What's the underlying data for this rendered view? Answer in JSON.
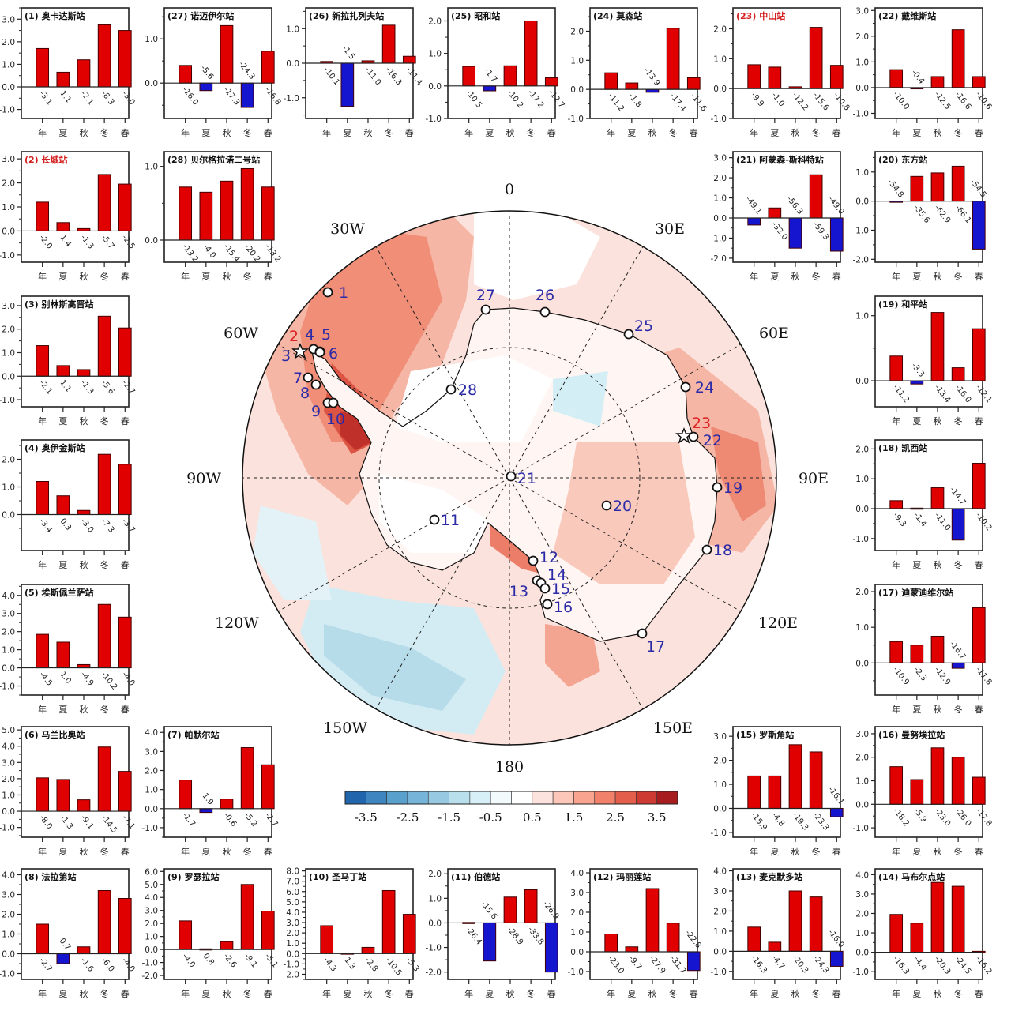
{
  "chart_data": [
    {
      "type": "bar",
      "id": "1",
      "title": "(1) 奥卡达斯站",
      "title_color": "#111111",
      "ylim": [
        -1.4,
        3.5
      ],
      "yticks": [
        -1,
        0,
        1,
        2,
        3
      ],
      "categories": [
        "年",
        "夏",
        "秋",
        "冬",
        "春"
      ],
      "values": [
        1.7,
        0.65,
        1.2,
        2.75,
        2.5
      ],
      "bar_labels": [
        "-3.1",
        "1.1",
        "-2.1",
        "-8.3",
        "-3.0"
      ]
    },
    {
      "type": "bar",
      "id": "27",
      "title": "(27) 诺迈伊尔站",
      "title_color": "#111111",
      "ylim": [
        -0.8,
        1.7
      ],
      "yticks": [
        0,
        1
      ],
      "categories": [
        "年",
        "夏",
        "秋",
        "冬",
        "春"
      ],
      "values": [
        0.4,
        -0.17,
        1.3,
        -0.55,
        0.72
      ],
      "bar_labels": [
        "-16.0",
        "-5.6",
        "-17.3",
        "-24.3",
        "-16.8"
      ]
    },
    {
      "type": "bar",
      "id": "26",
      "title": "(26) 新拉扎列夫站",
      "title_color": "#111111",
      "ylim": [
        -1.6,
        1.6
      ],
      "yticks": [
        -1,
        0,
        1
      ],
      "categories": [
        "年",
        "夏",
        "秋",
        "冬",
        "春"
      ],
      "values": [
        0.05,
        -1.25,
        0.07,
        1.1,
        0.2
      ],
      "bar_labels": [
        "-10.1",
        "-1.5",
        "-11.0",
        "-16.3",
        "-11.4"
      ]
    },
    {
      "type": "bar",
      "id": "25",
      "title": "(25) 昭和站",
      "title_color": "#111111",
      "ylim": [
        -1.0,
        2.4
      ],
      "yticks": [
        -1,
        0,
        1,
        2
      ],
      "categories": [
        "年",
        "夏",
        "秋",
        "冬",
        "春"
      ],
      "values": [
        0.6,
        -0.15,
        0.62,
        2.0,
        0.25
      ],
      "bar_labels": [
        "-10.5",
        "-1.7",
        "-10.2",
        "-17.2",
        "-12.7"
      ]
    },
    {
      "type": "bar",
      "id": "24",
      "title": "(24) 莫森站",
      "title_color": "#111111",
      "ylim": [
        -1.0,
        2.8
      ],
      "yticks": [
        -1,
        0,
        1,
        2
      ],
      "categories": [
        "年",
        "夏",
        "秋",
        "冬",
        "春"
      ],
      "values": [
        0.57,
        0.22,
        -0.1,
        2.1,
        0.4
      ],
      "bar_labels": [
        "-11.2",
        "-1.8",
        "-13.9",
        "-17.4",
        "-11.6"
      ]
    },
    {
      "type": "bar",
      "id": "23",
      "title": "(23) 中山站",
      "title_color": "#d42020",
      "ylim": [
        -1.0,
        2.7
      ],
      "yticks": [
        -1,
        0,
        1,
        2
      ],
      "categories": [
        "年",
        "夏",
        "秋",
        "冬",
        "春"
      ],
      "values": [
        0.8,
        0.72,
        0.06,
        2.05,
        0.78
      ],
      "bar_labels": [
        "-9.9",
        "-1.0",
        "-12.2",
        "-15.6",
        "-10.8"
      ]
    },
    {
      "type": "bar",
      "id": "22",
      "title": "(22) 戴维斯站",
      "title_color": "#111111",
      "ylim": [
        -1.2,
        3.1
      ],
      "yticks": [
        -1,
        0,
        1,
        2,
        3
      ],
      "categories": [
        "年",
        "夏",
        "秋",
        "冬",
        "春"
      ],
      "values": [
        0.7,
        -0.05,
        0.43,
        2.25,
        0.43
      ],
      "bar_labels": [
        "-10.0",
        "-0.4",
        "-12.5",
        "-16.6",
        "-10.6"
      ]
    },
    {
      "type": "bar",
      "id": "2",
      "title": "(2) 长城站",
      "title_color": "#d42020",
      "ylim": [
        -1.3,
        3.3
      ],
      "yticks": [
        -1,
        0,
        1,
        2,
        3
      ],
      "categories": [
        "年",
        "夏",
        "秋",
        "冬",
        "春"
      ],
      "values": [
        1.2,
        0.35,
        0.1,
        2.35,
        1.95
      ],
      "bar_labels": [
        "-2.0",
        "1.4",
        "-1.3",
        "-5.7",
        "-2.5"
      ]
    },
    {
      "type": "bar",
      "id": "28",
      "title": "(28) 贝尔格拉诺二号站",
      "title_color": "#111111",
      "ylim": [
        -0.3,
        1.2
      ],
      "yticks": [
        0,
        1
      ],
      "categories": [
        "年",
        "夏",
        "秋",
        "冬",
        "春"
      ],
      "values": [
        0.72,
        0.65,
        0.8,
        0.97,
        0.72
      ],
      "bar_labels": [
        "-13.2",
        "-4.0",
        "-15.4",
        "-20.2",
        "-13.2"
      ]
    },
    {
      "type": "bar",
      "id": "21",
      "title": "(21) 阿蒙森-斯科特站",
      "title_color": "#111111",
      "ylim": [
        -2.2,
        3.3
      ],
      "yticks": [
        -2,
        -1,
        0,
        1,
        2,
        3
      ],
      "categories": [
        "年",
        "夏",
        "秋",
        "冬",
        "春"
      ],
      "values": [
        -0.35,
        0.5,
        -1.5,
        2.15,
        -1.65
      ],
      "bar_labels": [
        "-49.1",
        "-32.0",
        "-56.3",
        "-59.3",
        "-49.0"
      ]
    },
    {
      "type": "bar",
      "id": "20",
      "title": "(20) 东方站",
      "title_color": "#111111",
      "ylim": [
        -2.1,
        1.7
      ],
      "yticks": [
        -2,
        -1,
        0,
        1
      ],
      "categories": [
        "年",
        "夏",
        "秋",
        "冬",
        "春"
      ],
      "values": [
        -0.03,
        0.85,
        0.97,
        1.2,
        -1.65
      ],
      "bar_labels": [
        "-54.8",
        "-35.6",
        "-62.9",
        "-66.1",
        "-54.5"
      ]
    },
    {
      "type": "bar",
      "id": "3",
      "title": "(3) 别林斯高晋站",
      "title_color": "#111111",
      "ylim": [
        -1.3,
        3.4
      ],
      "yticks": [
        -1,
        0,
        1,
        2,
        3
      ],
      "categories": [
        "年",
        "夏",
        "秋",
        "冬",
        "春"
      ],
      "values": [
        1.3,
        0.45,
        0.28,
        2.55,
        2.05
      ],
      "bar_labels": [
        "-2.1",
        "1.1",
        "-1.3",
        "-5.6",
        "-2.7"
      ]
    },
    {
      "type": "bar",
      "id": "19",
      "title": "(19) 和平站",
      "title_color": "#111111",
      "ylim": [
        -0.4,
        1.3
      ],
      "yticks": [
        0,
        1
      ],
      "categories": [
        "年",
        "夏",
        "秋",
        "冬",
        "春"
      ],
      "values": [
        0.38,
        -0.05,
        1.05,
        0.2,
        0.8
      ],
      "bar_labels": [
        "-11.2",
        "-3.3",
        "-13.4",
        "-16.0",
        "-12.1"
      ]
    },
    {
      "type": "bar",
      "id": "4",
      "title": "(4) 奥伊金斯站",
      "title_color": "#111111",
      "ylim": [
        -1.3,
        2.7
      ],
      "yticks": [
        0,
        1,
        2
      ],
      "categories": [
        "年",
        "夏",
        "秋",
        "冬",
        "春"
      ],
      "values": [
        1.2,
        0.68,
        0.15,
        2.18,
        1.82
      ],
      "bar_labels": [
        "-3.4",
        "0.3",
        "-3.0",
        "-7.3",
        "-3.7"
      ]
    },
    {
      "type": "bar",
      "id": "18",
      "title": "(18) 凯西站",
      "title_color": "#111111",
      "ylim": [
        -1.4,
        2.3
      ],
      "yticks": [
        -1,
        0,
        1,
        2
      ],
      "categories": [
        "年",
        "夏",
        "秋",
        "冬",
        "春"
      ],
      "values": [
        0.27,
        0.02,
        0.7,
        -1.05,
        1.52
      ],
      "bar_labels": [
        "-9.3",
        "-1.4",
        "-11.0",
        "-14.7",
        "-10.2"
      ]
    },
    {
      "type": "bar",
      "id": "5",
      "title": "(5) 埃斯佩兰萨站",
      "title_color": "#111111",
      "ylim": [
        -1.5,
        4.6
      ],
      "yticks": [
        -1,
        0,
        1,
        2,
        3,
        4
      ],
      "categories": [
        "年",
        "夏",
        "秋",
        "冬",
        "春"
      ],
      "values": [
        1.85,
        1.42,
        0.18,
        3.5,
        2.8
      ],
      "bar_labels": [
        "-4.5",
        "1.0",
        "-4.9",
        "-10.2",
        "-4.0"
      ]
    },
    {
      "type": "bar",
      "id": "17",
      "title": "(17) 迪蒙迪维尔站",
      "title_color": "#111111",
      "ylim": [
        -0.9,
        2.2
      ],
      "yticks": [
        0,
        1,
        2
      ],
      "categories": [
        "年",
        "夏",
        "秋",
        "冬",
        "春"
      ],
      "values": [
        0.6,
        0.5,
        0.75,
        -0.15,
        1.55
      ],
      "bar_labels": [
        "-10.9",
        "-2.3",
        "-12.9",
        "-16.7",
        "-11.8"
      ]
    },
    {
      "type": "bar",
      "id": "6",
      "title": "(6) 马兰比奥站",
      "title_color": "#111111",
      "ylim": [
        -1.6,
        5.2
      ],
      "yticks": [
        -1,
        0,
        1,
        2,
        3,
        4,
        5
      ],
      "categories": [
        "年",
        "夏",
        "秋",
        "冬",
        "春"
      ],
      "values": [
        2.05,
        1.95,
        0.7,
        3.95,
        2.45
      ],
      "bar_labels": [
        "-8.0",
        "-1.3",
        "-9.1",
        "-14.5",
        "-7.1"
      ]
    },
    {
      "type": "bar",
      "id": "7",
      "title": "(7) 帕默尔站",
      "title_color": "#111111",
      "ylim": [
        -1.5,
        4.3
      ],
      "yticks": [
        -1,
        0,
        1,
        2,
        3,
        4
      ],
      "categories": [
        "年",
        "夏",
        "秋",
        "冬",
        "春"
      ],
      "values": [
        1.5,
        -0.2,
        0.5,
        3.2,
        2.3
      ],
      "bar_labels": [
        "-1.7",
        "1.9",
        "-0.6",
        "-5.2",
        "-2.7"
      ]
    },
    {
      "type": "bar",
      "id": "15",
      "title": "(15) 罗斯角站",
      "title_color": "#111111",
      "ylim": [
        -1.2,
        3.4
      ],
      "yticks": [
        -1,
        0,
        1,
        2,
        3
      ],
      "categories": [
        "年",
        "夏",
        "秋",
        "冬",
        "春"
      ],
      "values": [
        1.35,
        1.35,
        2.65,
        2.35,
        -0.35
      ],
      "bar_labels": [
        "-15.9",
        "-4.8",
        "-19.3",
        "-23.3",
        "-16.1"
      ]
    },
    {
      "type": "bar",
      "id": "16",
      "title": "(16) 曼努埃拉站",
      "title_color": "#111111",
      "ylim": [
        -1.4,
        3.3
      ],
      "yticks": [
        -1,
        0,
        1,
        2,
        3
      ],
      "categories": [
        "年",
        "夏",
        "秋",
        "冬",
        "春"
      ],
      "values": [
        1.6,
        1.05,
        2.4,
        2.0,
        1.15
      ],
      "bar_labels": [
        "-18.2",
        "-5.9",
        "-23.0",
        "-26.0",
        "-17.8"
      ]
    },
    {
      "type": "bar",
      "id": "8",
      "title": "(8) 法拉第站",
      "title_color": "#111111",
      "ylim": [
        -1.3,
        4.3
      ],
      "yticks": [
        -1,
        0,
        1,
        2,
        3,
        4
      ],
      "categories": [
        "年",
        "夏",
        "秋",
        "冬",
        "春"
      ],
      "values": [
        1.5,
        -0.5,
        0.35,
        3.2,
        2.8
      ],
      "bar_labels": [
        "-2.7",
        "0.7",
        "-1.6",
        "-6.0",
        "-4.0"
      ]
    },
    {
      "type": "bar",
      "id": "9",
      "title": "(9) 罗瑟拉站",
      "title_color": "#111111",
      "ylim": [
        -2.3,
        6.2
      ],
      "yticks": [
        -2,
        -1,
        0,
        1,
        2,
        3,
        4,
        5,
        6
      ],
      "categories": [
        "年",
        "夏",
        "秋",
        "冬",
        "春"
      ],
      "values": [
        2.2,
        0.05,
        0.6,
        5.0,
        2.95
      ],
      "bar_labels": [
        "-4.0",
        "0.8",
        "-2.6",
        "-9.1",
        "-5.1"
      ]
    },
    {
      "type": "bar",
      "id": "10",
      "title": "(10) 圣马丁站",
      "title_color": "#111111",
      "ylim": [
        -2.5,
        8.2
      ],
      "yticks": [
        -2,
        -1,
        0,
        1,
        2,
        3,
        4,
        5,
        6,
        7,
        8
      ],
      "categories": [
        "年",
        "夏",
        "秋",
        "冬",
        "春"
      ],
      "values": [
        2.7,
        0.05,
        0.6,
        6.1,
        3.8
      ],
      "bar_labels": [
        "-4.3",
        "1.3",
        "-2.8",
        "-10.5",
        "-5.3"
      ]
    },
    {
      "type": "bar",
      "id": "11",
      "title": "(11) 伯德站",
      "title_color": "#111111",
      "ylim": [
        -2.3,
        2.2
      ],
      "yticks": [
        -2,
        -1,
        0,
        1,
        2
      ],
      "categories": [
        "年",
        "夏",
        "秋",
        "冬",
        "春"
      ],
      "values": [
        0.02,
        -1.55,
        1.05,
        1.35,
        -2.0
      ],
      "bar_labels": [
        "-26.4",
        "-15.6",
        "-28.9",
        "-33.8",
        "-26.9"
      ]
    },
    {
      "type": "bar",
      "id": "12",
      "title": "(12) 玛丽莲站",
      "title_color": "#111111",
      "ylim": [
        -1.4,
        4.2
      ],
      "yticks": [
        -1,
        0,
        1,
        2,
        3,
        4
      ],
      "categories": [
        "年",
        "夏",
        "秋",
        "冬",
        "春"
      ],
      "values": [
        0.9,
        0.25,
        3.2,
        1.45,
        -0.95
      ],
      "bar_labels": [
        "-23.0",
        "-9.7",
        "-27.9",
        "-31.7",
        "-22.8"
      ]
    },
    {
      "type": "bar",
      "id": "13",
      "title": "(13) 麦克默多站",
      "title_color": "#111111",
      "ylim": [
        -1.4,
        4.1
      ],
      "yticks": [
        -1,
        0,
        1,
        2,
        3,
        4
      ],
      "categories": [
        "年",
        "夏",
        "秋",
        "冬",
        "春"
      ],
      "values": [
        1.2,
        0.45,
        3.0,
        2.7,
        -0.75
      ],
      "bar_labels": [
        "-16.3",
        "-4.7",
        "-20.3",
        "-24.3",
        "-16.0"
      ]
    },
    {
      "type": "bar",
      "id": "14",
      "title": "(14) 马布尔点站",
      "title_color": "#111111",
      "ylim": [
        -1.4,
        4.3
      ],
      "yticks": [
        -1,
        0,
        1,
        2,
        3,
        4
      ],
      "categories": [
        "年",
        "夏",
        "秋",
        "冬",
        "春"
      ],
      "values": [
        1.95,
        1.5,
        3.6,
        3.4,
        0.05
      ],
      "bar_labels": [
        "-16.3",
        "-4.4",
        "-20.3",
        "-24.5",
        "-16.2"
      ]
    },
    {
      "type": "map",
      "projection": "south-polar-stereographic",
      "lon_labels": [
        "0",
        "30E",
        "60E",
        "90E",
        "120E",
        "150E",
        "180",
        "150W",
        "120W",
        "90W",
        "60W",
        "30W"
      ],
      "stations": [
        "1",
        "2",
        "3",
        "4",
        "5",
        "6",
        "7",
        "8",
        "9",
        "10",
        "11",
        "12",
        "13",
        "14",
        "15",
        "16",
        "17",
        "18",
        "19",
        "20",
        "21",
        "22",
        "23",
        "24",
        "25",
        "26",
        "27",
        "28"
      ],
      "highlight_stations": [
        "2",
        "23"
      ],
      "colorbar": {
        "range": [
          -4,
          4
        ],
        "step": 0.5,
        "tick_labels": [
          "-3.5",
          "-2.5",
          "-1.5",
          "-0.5",
          "0.5",
          "1.5",
          "2.5",
          "3.5"
        ],
        "colors": [
          "#2166ac",
          "#3f86c0",
          "#5aa0cc",
          "#76b5d9",
          "#97cae2",
          "#b9deec",
          "#d7eff6",
          "#f3fafc",
          "#ffffff",
          "#fde3de",
          "#fcc6b8",
          "#f8a48f",
          "#f1816b",
          "#e35f4c",
          "#cc3a32",
          "#a61c1f"
        ]
      },
      "colors": {
        "bar_positive": "#e00000",
        "bar_negative": "#1515d0",
        "station_label": "#2b2ba8",
        "highlight": "#d42020"
      }
    }
  ]
}
